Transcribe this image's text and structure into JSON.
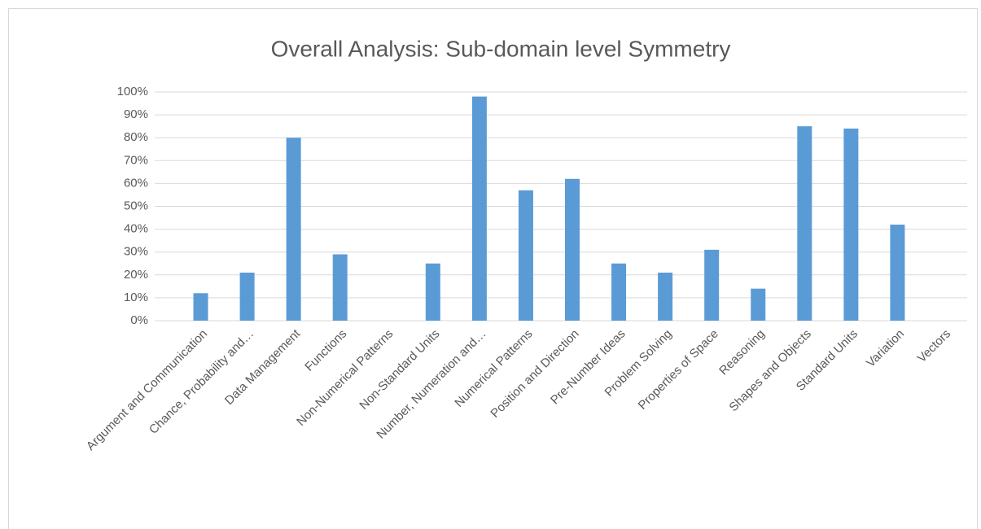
{
  "chart_data": {
    "type": "bar",
    "title": "Overall Analysis: Sub-domain level Symmetry",
    "categories": [
      "Argument and Communication",
      "Chance, Probability and…",
      "Data Management",
      "Functions",
      "Non-Numerical Patterns",
      "Non-Standard Units",
      "Number, Numeration and…",
      "Numerical Patterns",
      "Position and Direction",
      "Pre-Number Ideas",
      "Problem Solving",
      "Properties of Space",
      "Reasoning",
      "Shapes and Objects",
      "Standard Units",
      "Variation",
      "Vectors"
    ],
    "values": [
      12,
      21,
      80,
      29,
      0,
      25,
      98,
      57,
      62,
      25,
      21,
      31,
      14,
      85,
      84,
      42,
      0
    ],
    "color": "#5b9bd5",
    "ylim": [
      0,
      100
    ],
    "yticks": [
      {
        "value": 0,
        "label": "0%"
      },
      {
        "value": 10,
        "label": "10%"
      },
      {
        "value": 20,
        "label": "20%"
      },
      {
        "value": 30,
        "label": "30%"
      },
      {
        "value": 40,
        "label": "40%"
      },
      {
        "value": 50,
        "label": "50%"
      },
      {
        "value": 60,
        "label": "60%"
      },
      {
        "value": 70,
        "label": "70%"
      },
      {
        "value": 80,
        "label": "80%"
      },
      {
        "value": 90,
        "label": "90%"
      },
      {
        "value": 100,
        "label": "100%"
      }
    ],
    "grid": true
  }
}
